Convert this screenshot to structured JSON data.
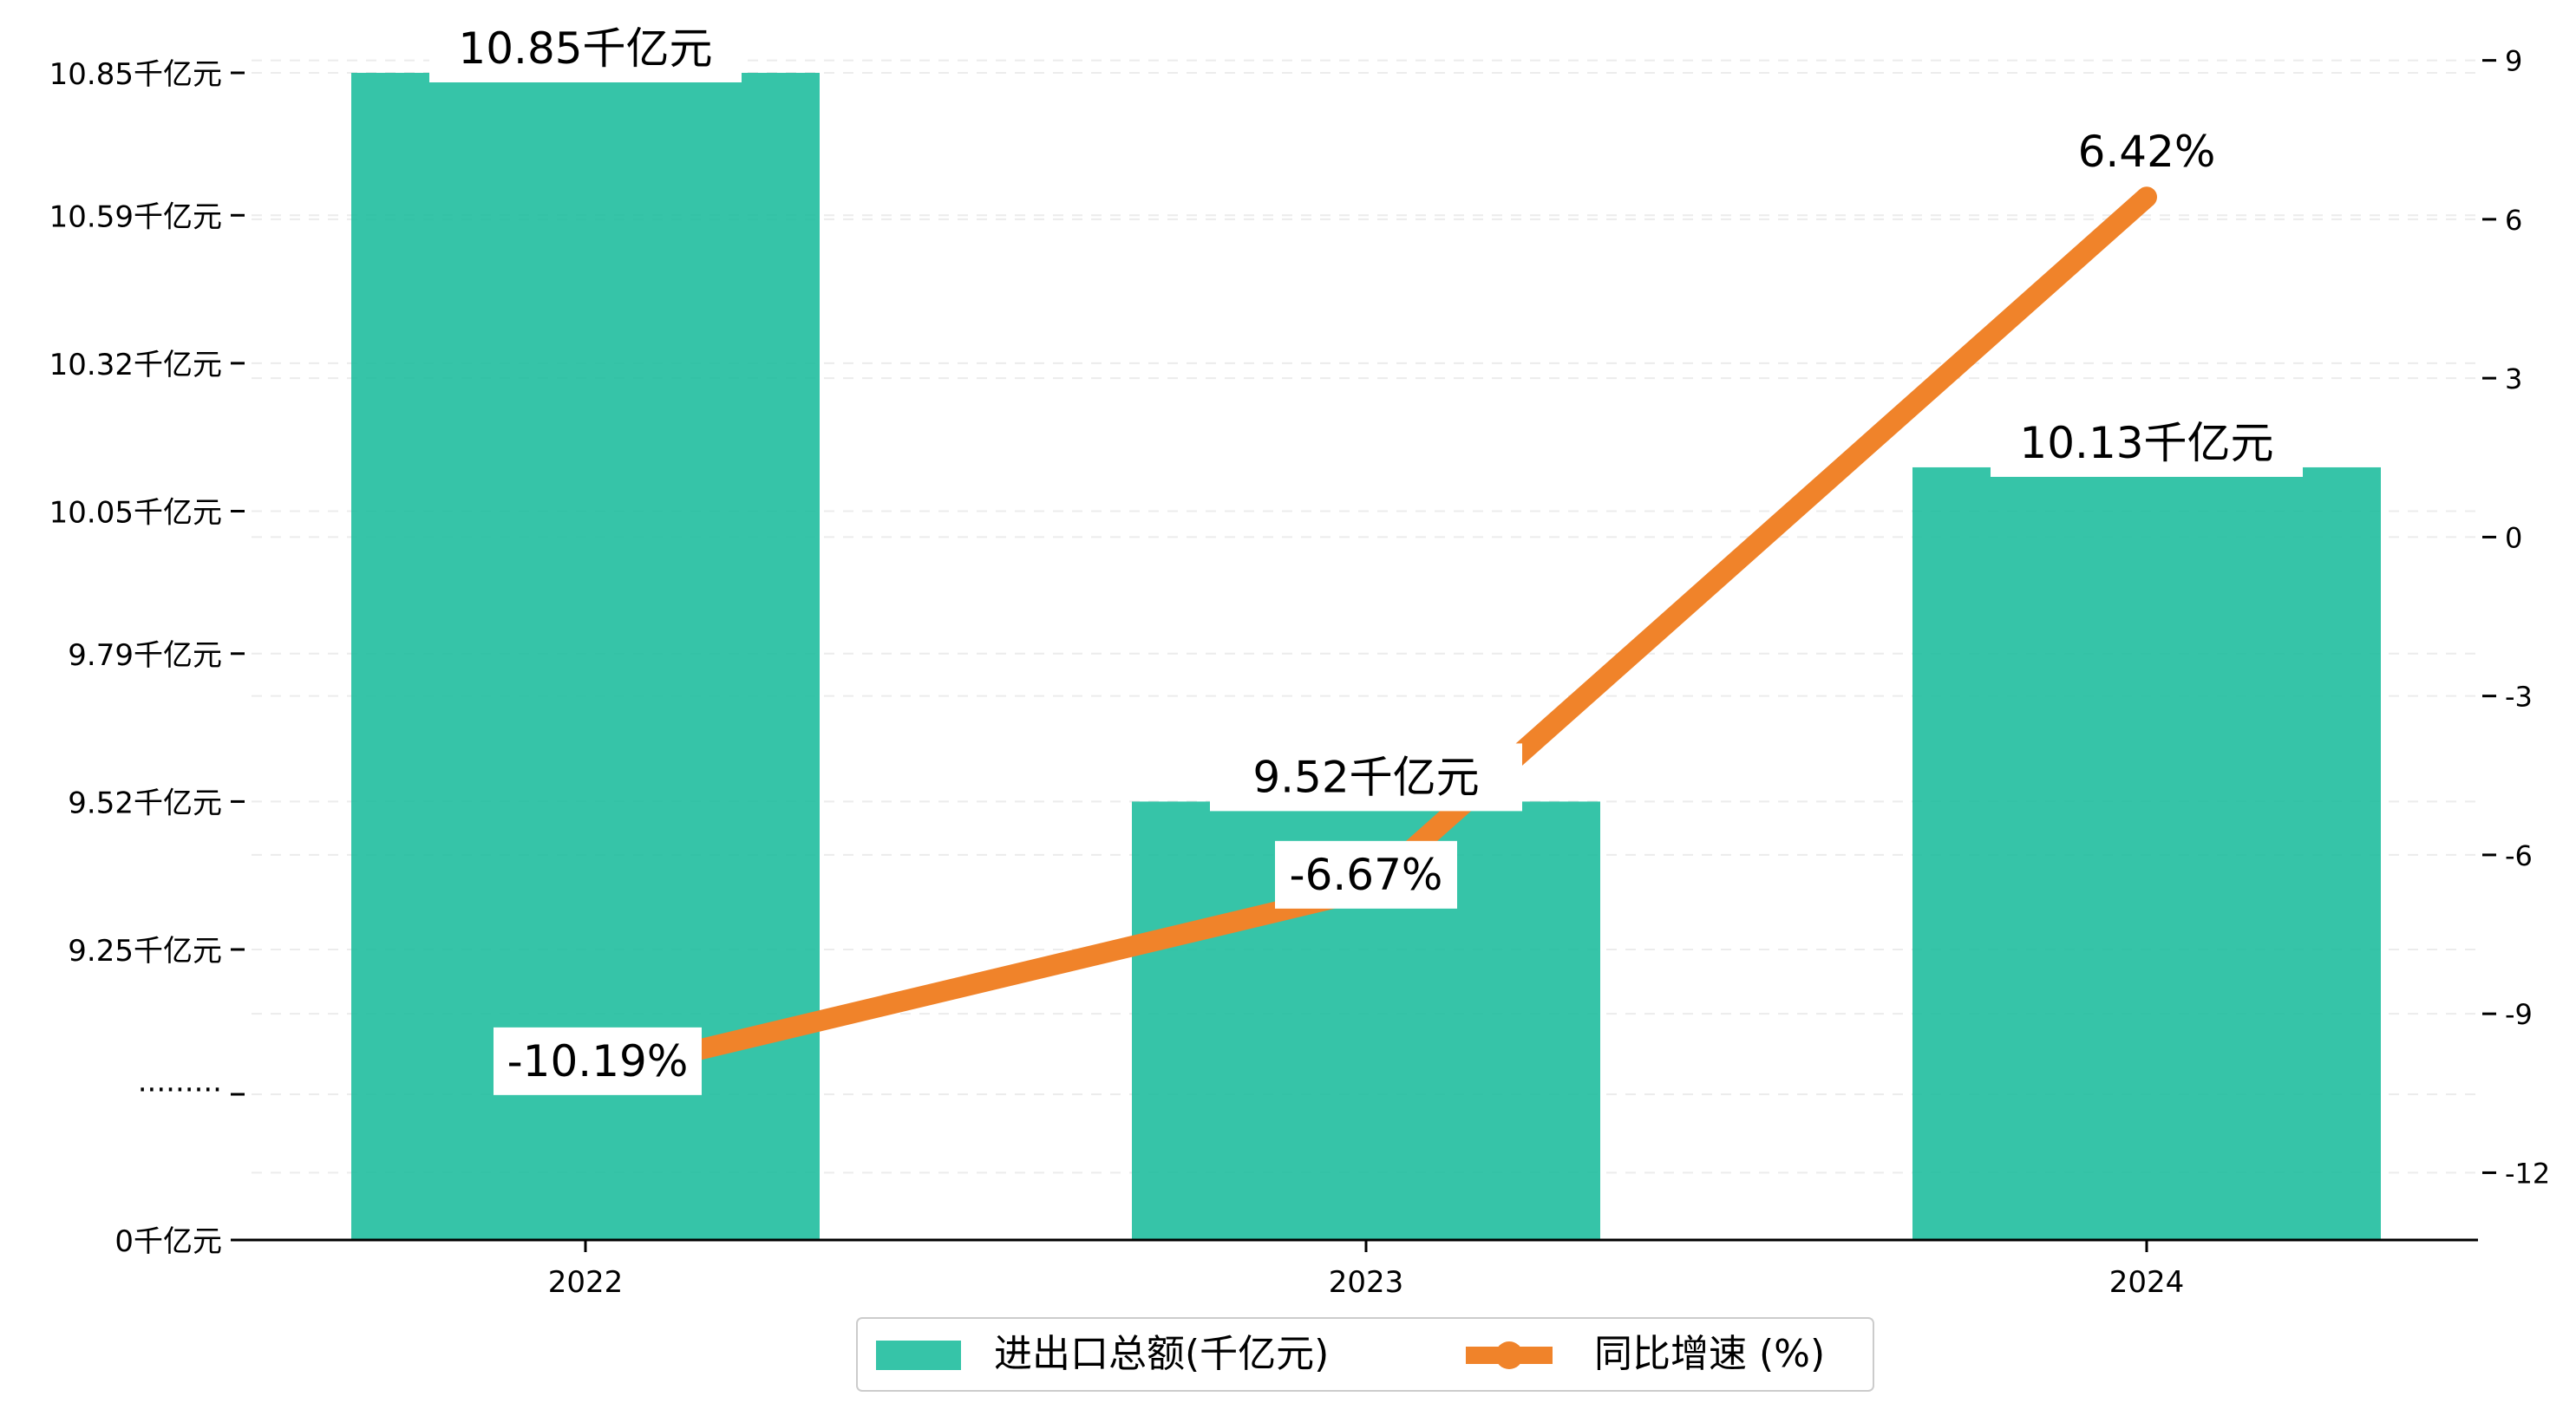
{
  "chart_data": {
    "type": "bar",
    "categories": [
      "2022",
      "2023",
      "2024"
    ],
    "series": [
      {
        "name": "进出口总额(千亿元)",
        "type": "bar",
        "axis": "left",
        "color": "#1abc9c",
        "values": [
          10.85,
          9.52,
          10.13
        ],
        "labels": [
          "10.85千亿元",
          "9.52千亿元",
          "10.13千亿元"
        ]
      },
      {
        "name": "同比增速 (%)",
        "type": "line",
        "axis": "right",
        "color": "#f0832a",
        "values": [
          -10.19,
          -6.67,
          6.42
        ],
        "labels": [
          "-10.19%",
          "-6.67%",
          "6.42%"
        ]
      }
    ],
    "left_axis": {
      "broken": true,
      "break_label": "·········",
      "ticks": [
        {
          "value": 0,
          "label": "0千亿元"
        },
        {
          "value": 9.25,
          "label": "9.25千亿元"
        },
        {
          "value": 9.52,
          "label": "9.52千亿元"
        },
        {
          "value": 9.79,
          "label": "9.79千亿元"
        },
        {
          "value": 10.05,
          "label": "10.05千亿元"
        },
        {
          "value": 10.32,
          "label": "10.32千亿元"
        },
        {
          "value": 10.59,
          "label": "10.59千亿元"
        },
        {
          "value": 10.85,
          "label": "10.85千亿元"
        }
      ]
    },
    "right_axis": {
      "ylim": [
        -13.27,
        10.14
      ],
      "ticks": [
        -12,
        -9,
        -6,
        -3,
        0,
        3,
        6,
        9
      ]
    },
    "title": "",
    "xlabel": "",
    "ylabel": "",
    "grid": "horizontal dashed",
    "legend": "bottom-center"
  }
}
